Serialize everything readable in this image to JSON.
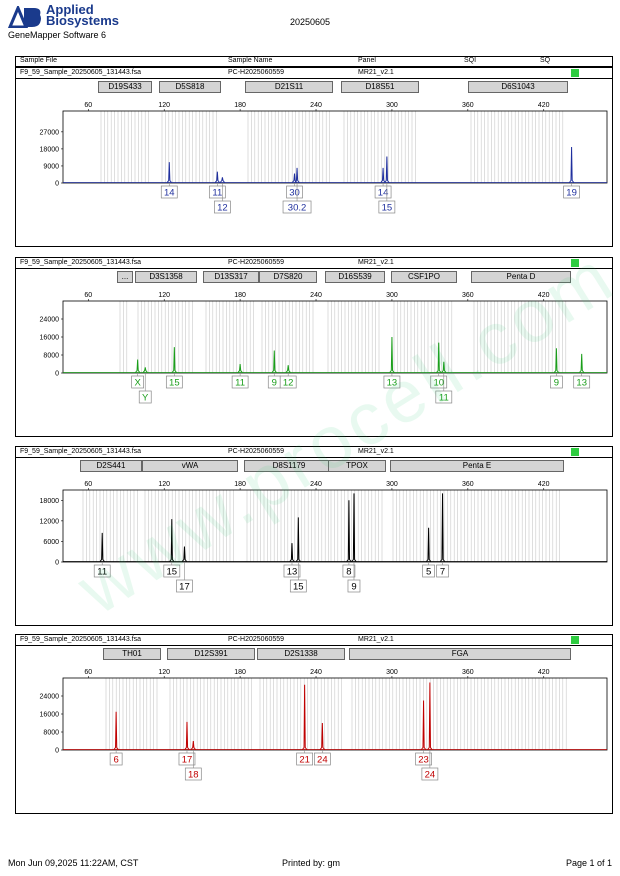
{
  "header": {
    "logo_mark": "AB",
    "logo_line1": "Applied",
    "logo_line2": "Biosystems",
    "software": "GeneMapper Software 6",
    "date": "20250605"
  },
  "columns": {
    "sample_file": "Sample File",
    "sample_name": "Sample Name",
    "panel": "Panel",
    "sqi": "SQI",
    "sq": "SQ"
  },
  "colors": {
    "blue": "#1f2f9e",
    "green": "#1a9e1a",
    "black": "#000000",
    "red": "#c00000",
    "sqi": "#2ecc40"
  },
  "footer": {
    "printed_on": "Mon Jun 09,2025 11:22AM, CST",
    "printed_by": "Printed by: gm",
    "page": "Page 1 of 1"
  },
  "watermark": "www.procell.com.cn",
  "panels": [
    {
      "file": "F9_59_Sample_20250605_131443.fsa",
      "sample": "PC-H2025060559",
      "panel": "MR21_v2.1",
      "color": "#1f2f9e",
      "markers": [
        "D19S433",
        "D5S818",
        "D21S11",
        "D18S51",
        "D6S1043"
      ],
      "chart_data": {
        "type": "line",
        "dye": "blue",
        "xlim": [
          40,
          470
        ],
        "x_ticks": [
          "60",
          "120",
          "180",
          "240",
          "300",
          "360",
          "420"
        ],
        "ylim": [
          0,
          38000
        ],
        "y_ticks": [
          "27000",
          "18000",
          "9000",
          "0"
        ],
        "peaks": [
          {
            "x": 124,
            "height": 11000
          },
          {
            "x": 162,
            "height": 6000
          },
          {
            "x": 166,
            "height": 3000
          },
          {
            "x": 223,
            "height": 5000
          },
          {
            "x": 225,
            "height": 8000
          },
          {
            "x": 293,
            "height": 8000
          },
          {
            "x": 296,
            "height": 14000
          },
          {
            "x": 442,
            "height": 19000
          }
        ],
        "alleles": [
          {
            "x": 124,
            "label": "14",
            "row": 1
          },
          {
            "x": 162,
            "label": "11",
            "row": 1
          },
          {
            "x": 166,
            "label": "12",
            "row": 2
          },
          {
            "x": 223,
            "label": "30",
            "row": 1
          },
          {
            "x": 225,
            "label": "30.2",
            "row": 2
          },
          {
            "x": 293,
            "label": "14",
            "row": 1
          },
          {
            "x": 296,
            "label": "15",
            "row": 2
          },
          {
            "x": 442,
            "label": "19",
            "row": 1
          }
        ]
      }
    },
    {
      "file": "F9_59_Sample_20250605_131443.fsa",
      "sample": "PC-H2025060559",
      "panel": "MR21_v2.1",
      "color": "#1a9e1a",
      "markers": [
        "...",
        "D3S1358",
        "D13S317",
        "D7S820",
        "D16S539",
        "CSF1PO",
        "Penta D"
      ],
      "chart_data": {
        "type": "line",
        "dye": "green",
        "xlim": [
          40,
          470
        ],
        "x_ticks": [
          "60",
          "120",
          "180",
          "240",
          "300",
          "360",
          "420"
        ],
        "ylim": [
          0,
          32000
        ],
        "y_ticks": [
          "24000",
          "16000",
          "8000",
          "0"
        ],
        "peaks": [
          {
            "x": 99,
            "height": 6000
          },
          {
            "x": 105,
            "height": 2500
          },
          {
            "x": 128,
            "height": 11500
          },
          {
            "x": 180,
            "height": 4000
          },
          {
            "x": 207,
            "height": 10000
          },
          {
            "x": 218,
            "height": 3500
          },
          {
            "x": 300,
            "height": 16000
          },
          {
            "x": 337,
            "height": 13500
          },
          {
            "x": 341,
            "height": 5000
          },
          {
            "x": 430,
            "height": 11000
          },
          {
            "x": 450,
            "height": 8500
          }
        ],
        "alleles": [
          {
            "x": 99,
            "label": "X",
            "row": 1
          },
          {
            "x": 105,
            "label": "Y",
            "row": 2
          },
          {
            "x": 128,
            "label": "15",
            "row": 1
          },
          {
            "x": 180,
            "label": "11",
            "row": 1
          },
          {
            "x": 207,
            "label": "9",
            "row": 1
          },
          {
            "x": 218,
            "label": "12",
            "row": 1
          },
          {
            "x": 300,
            "label": "13",
            "row": 1
          },
          {
            "x": 337,
            "label": "10",
            "row": 1
          },
          {
            "x": 341,
            "label": "11",
            "row": 2
          },
          {
            "x": 430,
            "label": "9",
            "row": 1
          },
          {
            "x": 450,
            "label": "13",
            "row": 1
          }
        ]
      }
    },
    {
      "file": "F9_59_Sample_20250605_131443.fsa",
      "sample": "PC-H2025060559",
      "panel": "MR21_v2.1",
      "color": "#000000",
      "markers": [
        "D2S441",
        "vWA",
        "D8S1179",
        "TPOX",
        "Penta E"
      ],
      "chart_data": {
        "type": "line",
        "dye": "black",
        "xlim": [
          40,
          470
        ],
        "x_ticks": [
          "60",
          "120",
          "180",
          "240",
          "300",
          "360",
          "420"
        ],
        "ylim": [
          0,
          21000
        ],
        "y_ticks": [
          "18000",
          "12000",
          "6000",
          "0"
        ],
        "peaks": [
          {
            "x": 71,
            "height": 8500
          },
          {
            "x": 126,
            "height": 12500
          },
          {
            "x": 136,
            "height": 4500
          },
          {
            "x": 221,
            "height": 5500
          },
          {
            "x": 226,
            "height": 13000
          },
          {
            "x": 266,
            "height": 18000
          },
          {
            "x": 270,
            "height": 20000
          },
          {
            "x": 329,
            "height": 10000
          },
          {
            "x": 340,
            "height": 20000
          }
        ],
        "alleles": [
          {
            "x": 71,
            "label": "11",
            "row": 1
          },
          {
            "x": 126,
            "label": "15",
            "row": 1
          },
          {
            "x": 136,
            "label": "17",
            "row": 2
          },
          {
            "x": 221,
            "label": "13",
            "row": 1
          },
          {
            "x": 226,
            "label": "15",
            "row": 2
          },
          {
            "x": 266,
            "label": "8",
            "row": 1
          },
          {
            "x": 270,
            "label": "9",
            "row": 2
          },
          {
            "x": 329,
            "label": "5",
            "row": 1
          },
          {
            "x": 340,
            "label": "7",
            "row": 1
          }
        ]
      }
    },
    {
      "file": "F9_59_Sample_20250605_131443.fsa",
      "sample": "PC-H2025060559",
      "panel": "MR21_v2.1",
      "color": "#c00000",
      "markers": [
        "TH01",
        "D12S391",
        "D2S1338",
        "FGA"
      ],
      "chart_data": {
        "type": "line",
        "dye": "red",
        "xlim": [
          40,
          470
        ],
        "x_ticks": [
          "60",
          "120",
          "180",
          "240",
          "300",
          "360",
          "420"
        ],
        "ylim": [
          0,
          32000
        ],
        "y_ticks": [
          "24000",
          "16000",
          "8000",
          "0"
        ],
        "peaks": [
          {
            "x": 82,
            "height": 17000
          },
          {
            "x": 138,
            "height": 12500
          },
          {
            "x": 143,
            "height": 4000
          },
          {
            "x": 231,
            "height": 29000
          },
          {
            "x": 245,
            "height": 12000
          },
          {
            "x": 325,
            "height": 22000
          },
          {
            "x": 330,
            "height": 30000
          }
        ],
        "alleles": [
          {
            "x": 82,
            "label": "6",
            "row": 1
          },
          {
            "x": 138,
            "label": "17",
            "row": 1
          },
          {
            "x": 143,
            "label": "18",
            "row": 2
          },
          {
            "x": 231,
            "label": "21",
            "row": 1
          },
          {
            "x": 245,
            "label": "24",
            "row": 1
          },
          {
            "x": 325,
            "label": "23",
            "row": 1
          },
          {
            "x": 330,
            "label": "24",
            "row": 2
          }
        ]
      }
    }
  ]
}
